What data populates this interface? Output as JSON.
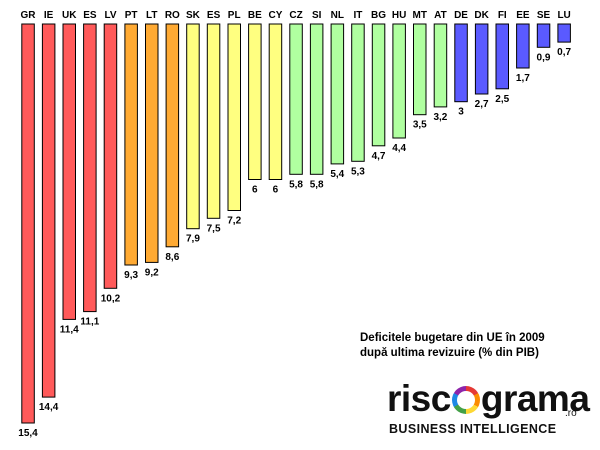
{
  "chart_data": {
    "type": "bar",
    "orientation": "vertical-downward",
    "categories": [
      "GR",
      "IE",
      "UK",
      "ES",
      "LV",
      "PT",
      "LT",
      "RO",
      "SK",
      "ES",
      "PL",
      "BE",
      "CY",
      "CZ",
      "SI",
      "NL",
      "IT",
      "BG",
      "HU",
      "MT",
      "AT",
      "DE",
      "DK",
      "FI",
      "EE",
      "SE",
      "LU"
    ],
    "values": [
      15.4,
      14.4,
      11.4,
      11.1,
      10.2,
      9.3,
      9.2,
      8.6,
      7.9,
      7.5,
      7.2,
      6,
      6,
      5.8,
      5.8,
      5.4,
      5.3,
      4.7,
      4.4,
      3.5,
      3.2,
      3,
      2.7,
      2.5,
      1.7,
      0.9,
      0.7
    ],
    "value_labels": [
      "15,4",
      "14,4",
      "11,4",
      "11,1",
      "10,2",
      "9,3",
      "9,2",
      "8,6",
      "7,9",
      "7,5",
      "7,2",
      "6",
      "6",
      "5,8",
      "5,8",
      "5,4",
      "5,3",
      "4,7",
      "4,4",
      "3,5",
      "3,2",
      "3",
      "2,7",
      "2,5",
      "1,7",
      "0,9",
      "0,7"
    ],
    "colors": [
      "#ff5a5a",
      "#ff5a5a",
      "#ff5a5a",
      "#ff5a5a",
      "#ff5a5a",
      "#ffaa33",
      "#ffaa33",
      "#ffaa33",
      "#ffff80",
      "#ffff80",
      "#ffff80",
      "#ffff80",
      "#ffff80",
      "#b0ffa0",
      "#b0ffa0",
      "#b0ffa0",
      "#b0ffa0",
      "#b0ffa0",
      "#b0ffa0",
      "#b0ffa0",
      "#b0ffa0",
      "#5a5aff",
      "#5a5aff",
      "#5a5aff",
      "#5a5aff",
      "#5a5aff",
      "#5a5aff"
    ],
    "ylim": [
      0,
      15.4
    ],
    "grid": false,
    "legend": "none"
  },
  "caption": {
    "line1": "Deficitele bugetare din UE în 2009",
    "line2": "după ultima revizuire (% din PIB)"
  },
  "logo": {
    "left": "risc",
    "right": "grama",
    "suffix": ".ro",
    "tagline": "BUSINESS INTELLIGENCE"
  }
}
